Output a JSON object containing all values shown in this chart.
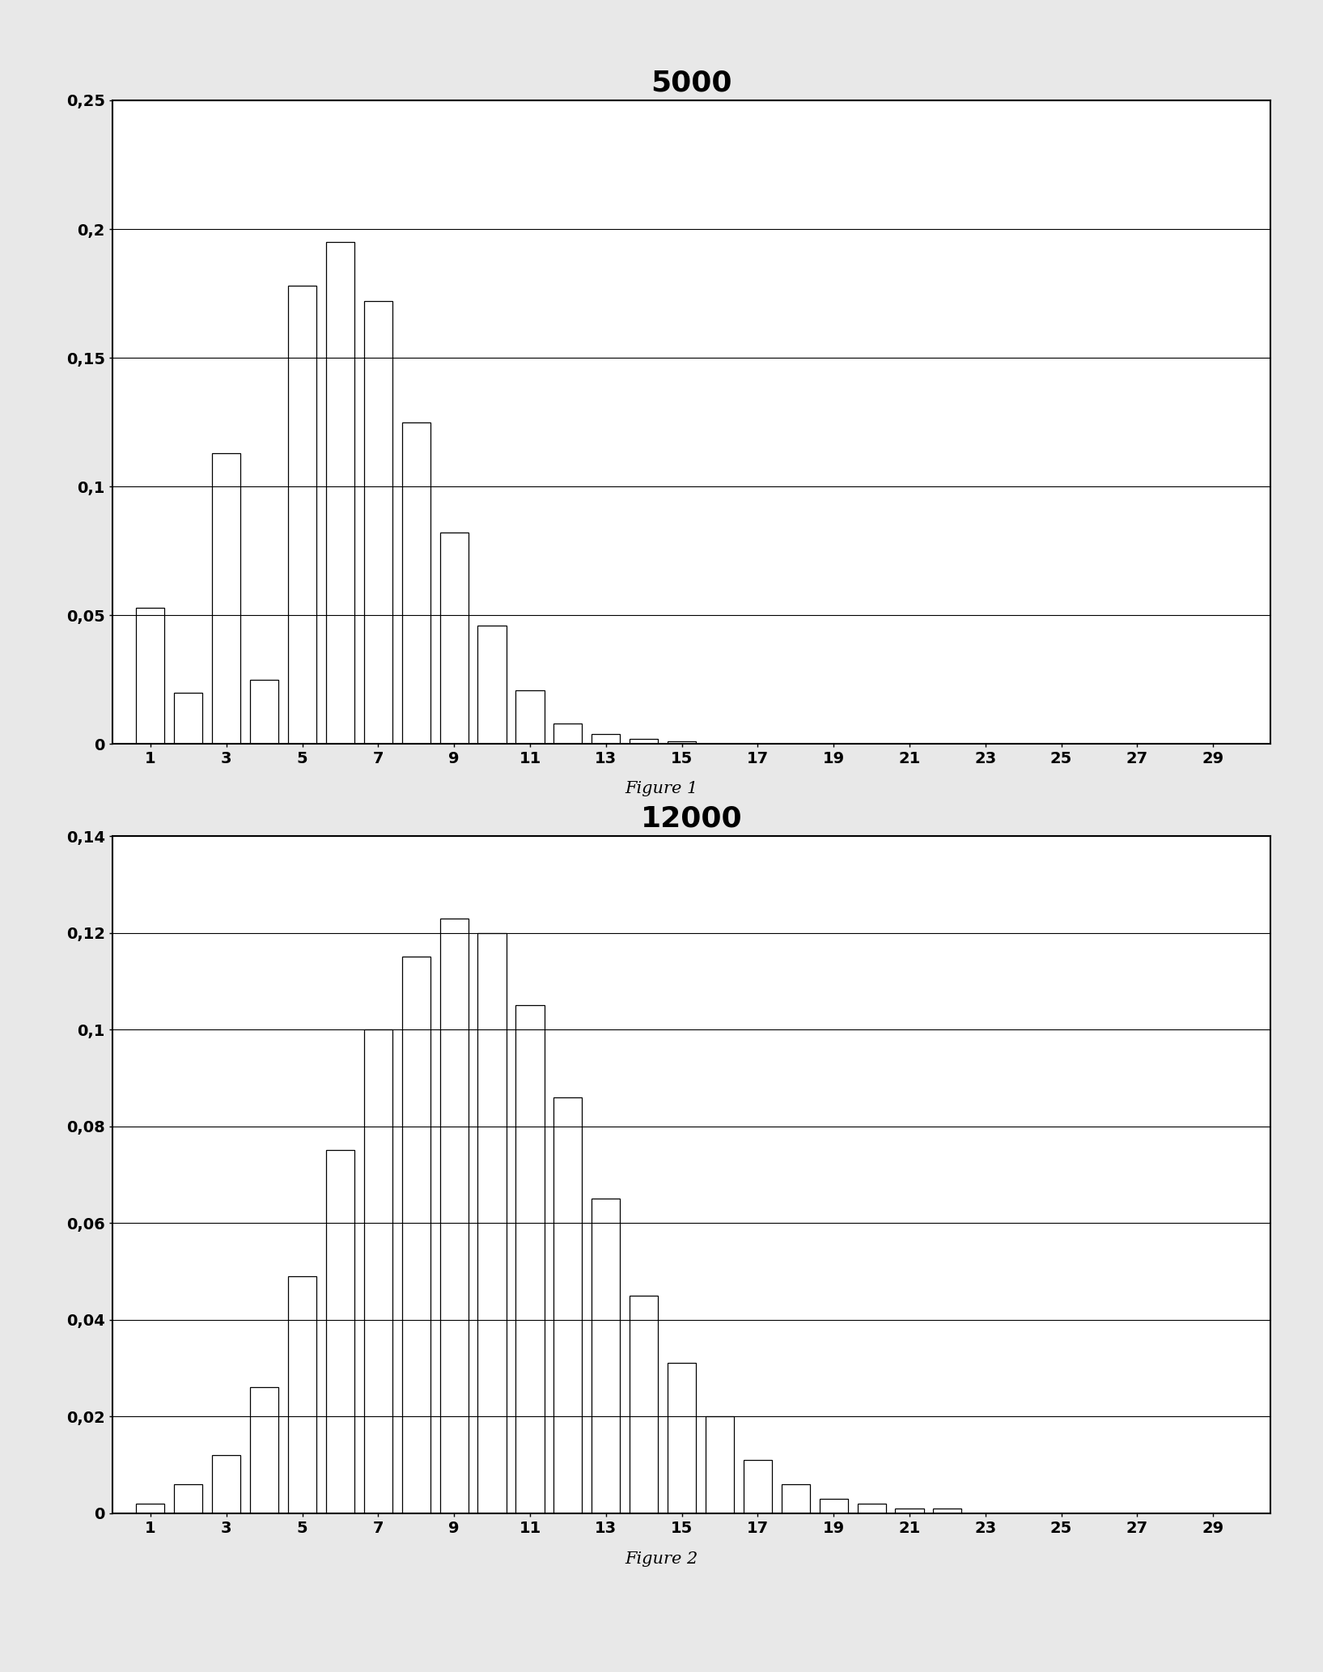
{
  "fig1_title": "5000",
  "fig2_title": "12000",
  "fig1_caption": "Figure 1",
  "fig2_caption": "Figure 2",
  "x_ticks": [
    1,
    3,
    5,
    7,
    9,
    11,
    13,
    15,
    17,
    19,
    21,
    23,
    25,
    27,
    29
  ],
  "fig1_values": [
    0.053,
    0.02,
    0.113,
    0.025,
    0.178,
    0.195,
    0.172,
    0.125,
    0.082,
    0.046,
    0.021,
    0.008,
    0.004,
    0.002,
    0.001,
    0.0,
    0.0,
    0.0,
    0.0,
    0.0,
    0.0,
    0.0,
    0.0,
    0.0,
    0.0,
    0.0,
    0.0,
    0.0,
    0.0
  ],
  "fig2_values": [
    0.002,
    0.006,
    0.012,
    0.026,
    0.049,
    0.075,
    0.1,
    0.115,
    0.123,
    0.12,
    0.105,
    0.086,
    0.065,
    0.045,
    0.031,
    0.02,
    0.011,
    0.006,
    0.003,
    0.002,
    0.001,
    0.001,
    0.0,
    0.0,
    0.0,
    0.0,
    0.0,
    0.0,
    0.0
  ],
  "fig1_ylim": [
    0,
    0.25
  ],
  "fig2_ylim": [
    0,
    0.14
  ],
  "fig1_yticks": [
    0,
    0.05,
    0.1,
    0.15,
    0.2,
    0.25
  ],
  "fig1_ytick_labels": [
    "0",
    "0,05",
    "0,1",
    "0,15",
    "0,2",
    "0,25"
  ],
  "fig2_yticks": [
    0,
    0.02,
    0.04,
    0.06,
    0.08,
    0.1,
    0.12,
    0.14
  ],
  "fig2_ytick_labels": [
    "0",
    "0,02",
    "0,04",
    "0,06",
    "0,08",
    "0,1",
    "0,12",
    "0,14"
  ],
  "bar_color": "#ffffff",
  "bar_edge_color": "#000000",
  "background_color": "#ffffff",
  "fig_background": "#e8e8e8",
  "title_fontsize": 26,
  "tick_fontsize": 14,
  "caption_fontsize": 15
}
